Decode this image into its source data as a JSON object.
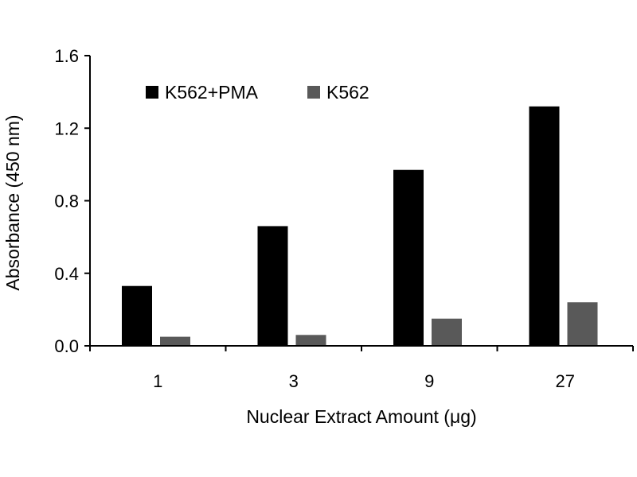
{
  "chart_data": {
    "type": "bar",
    "categories": [
      "1",
      "3",
      "9",
      "27"
    ],
    "series": [
      {
        "name": "K562+PMA",
        "values": [
          0.33,
          0.66,
          0.97,
          1.32
        ],
        "color": "#000000"
      },
      {
        "name": "K562",
        "values": [
          0.05,
          0.06,
          0.15,
          0.24
        ],
        "color": "#595959"
      }
    ],
    "title": "",
    "xlabel": "Nuclear Extract Amount (μg)",
    "ylabel": "Absorbance (450 nm)",
    "ylim": [
      0,
      1.6
    ],
    "yticks": [
      "0.0",
      "0.4",
      "0.8",
      "1.2",
      "1.6"
    ],
    "grid": false,
    "legend_position": "top-left"
  }
}
